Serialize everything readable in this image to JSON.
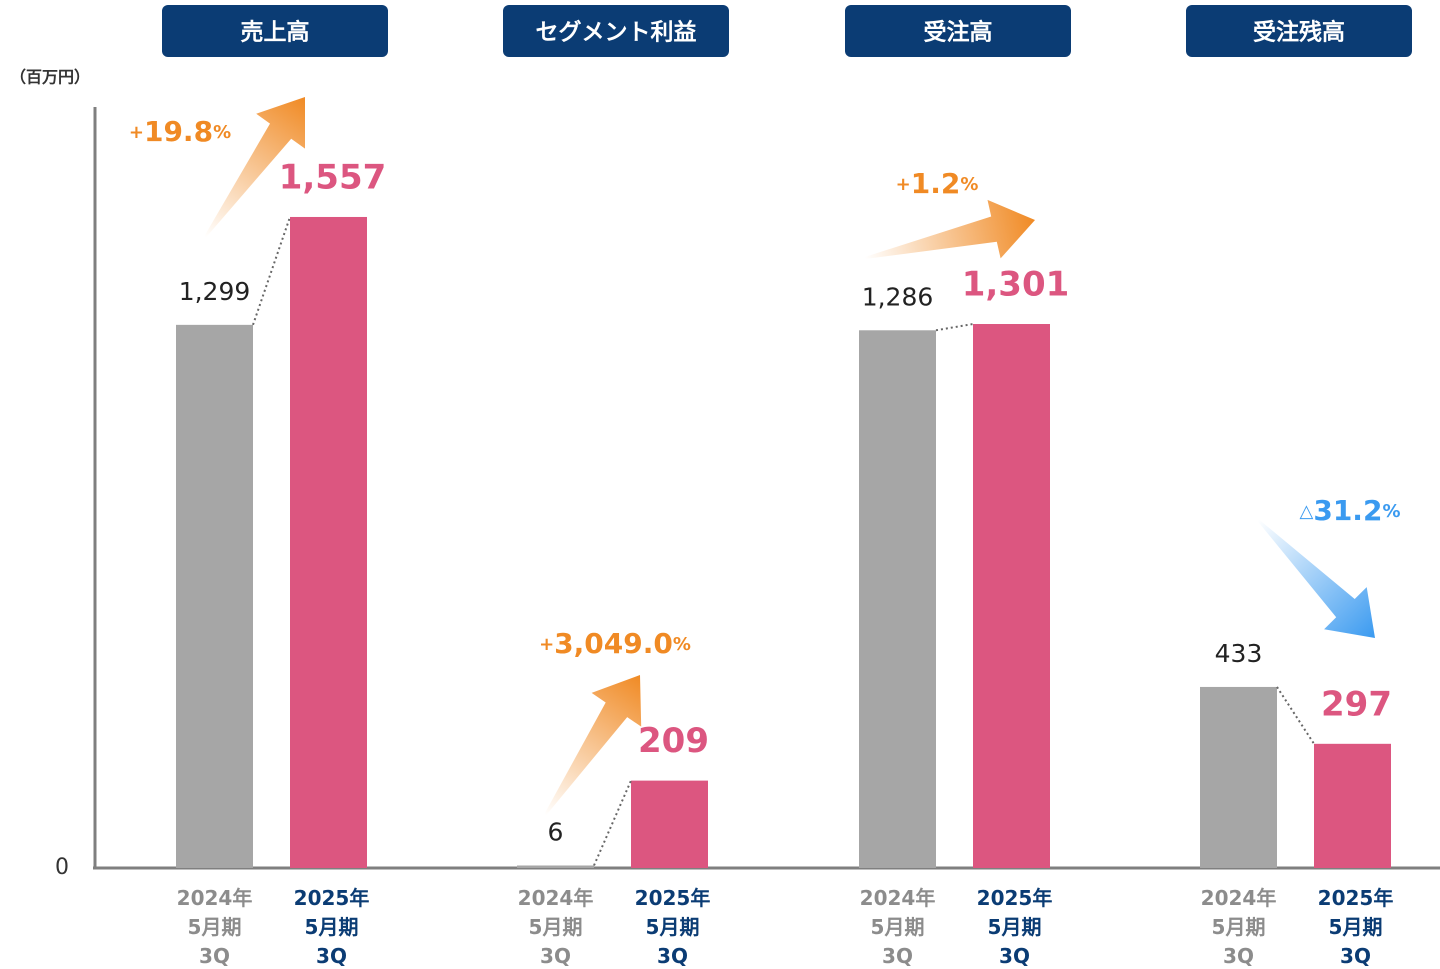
{
  "chart_data": {
    "type": "bar",
    "y_label": "（百万円）",
    "categories": [
      "売上高",
      "セグメント利益",
      "受注高",
      "受注残高"
    ],
    "series": [
      {
        "name": "2024年\n5月期\n3Q",
        "color": "#a6a6a6",
        "values": [
          1299,
          6,
          1286,
          433
        ],
        "value_labels": [
          "1,299",
          "6",
          "1,286",
          "433"
        ]
      },
      {
        "name": "2025年\n5月期\n3Q",
        "color": "#dc5680",
        "values": [
          1557,
          209,
          1301,
          297
        ],
        "value_labels": [
          "1,557",
          "209",
          "1,301",
          "297"
        ]
      }
    ],
    "changes": [
      "+19.8%",
      "+3,049.0%",
      "+1.2%",
      "△31.2%"
    ],
    "ylim": [
      0,
      1820
    ],
    "yticks": [
      0
    ]
  }
}
